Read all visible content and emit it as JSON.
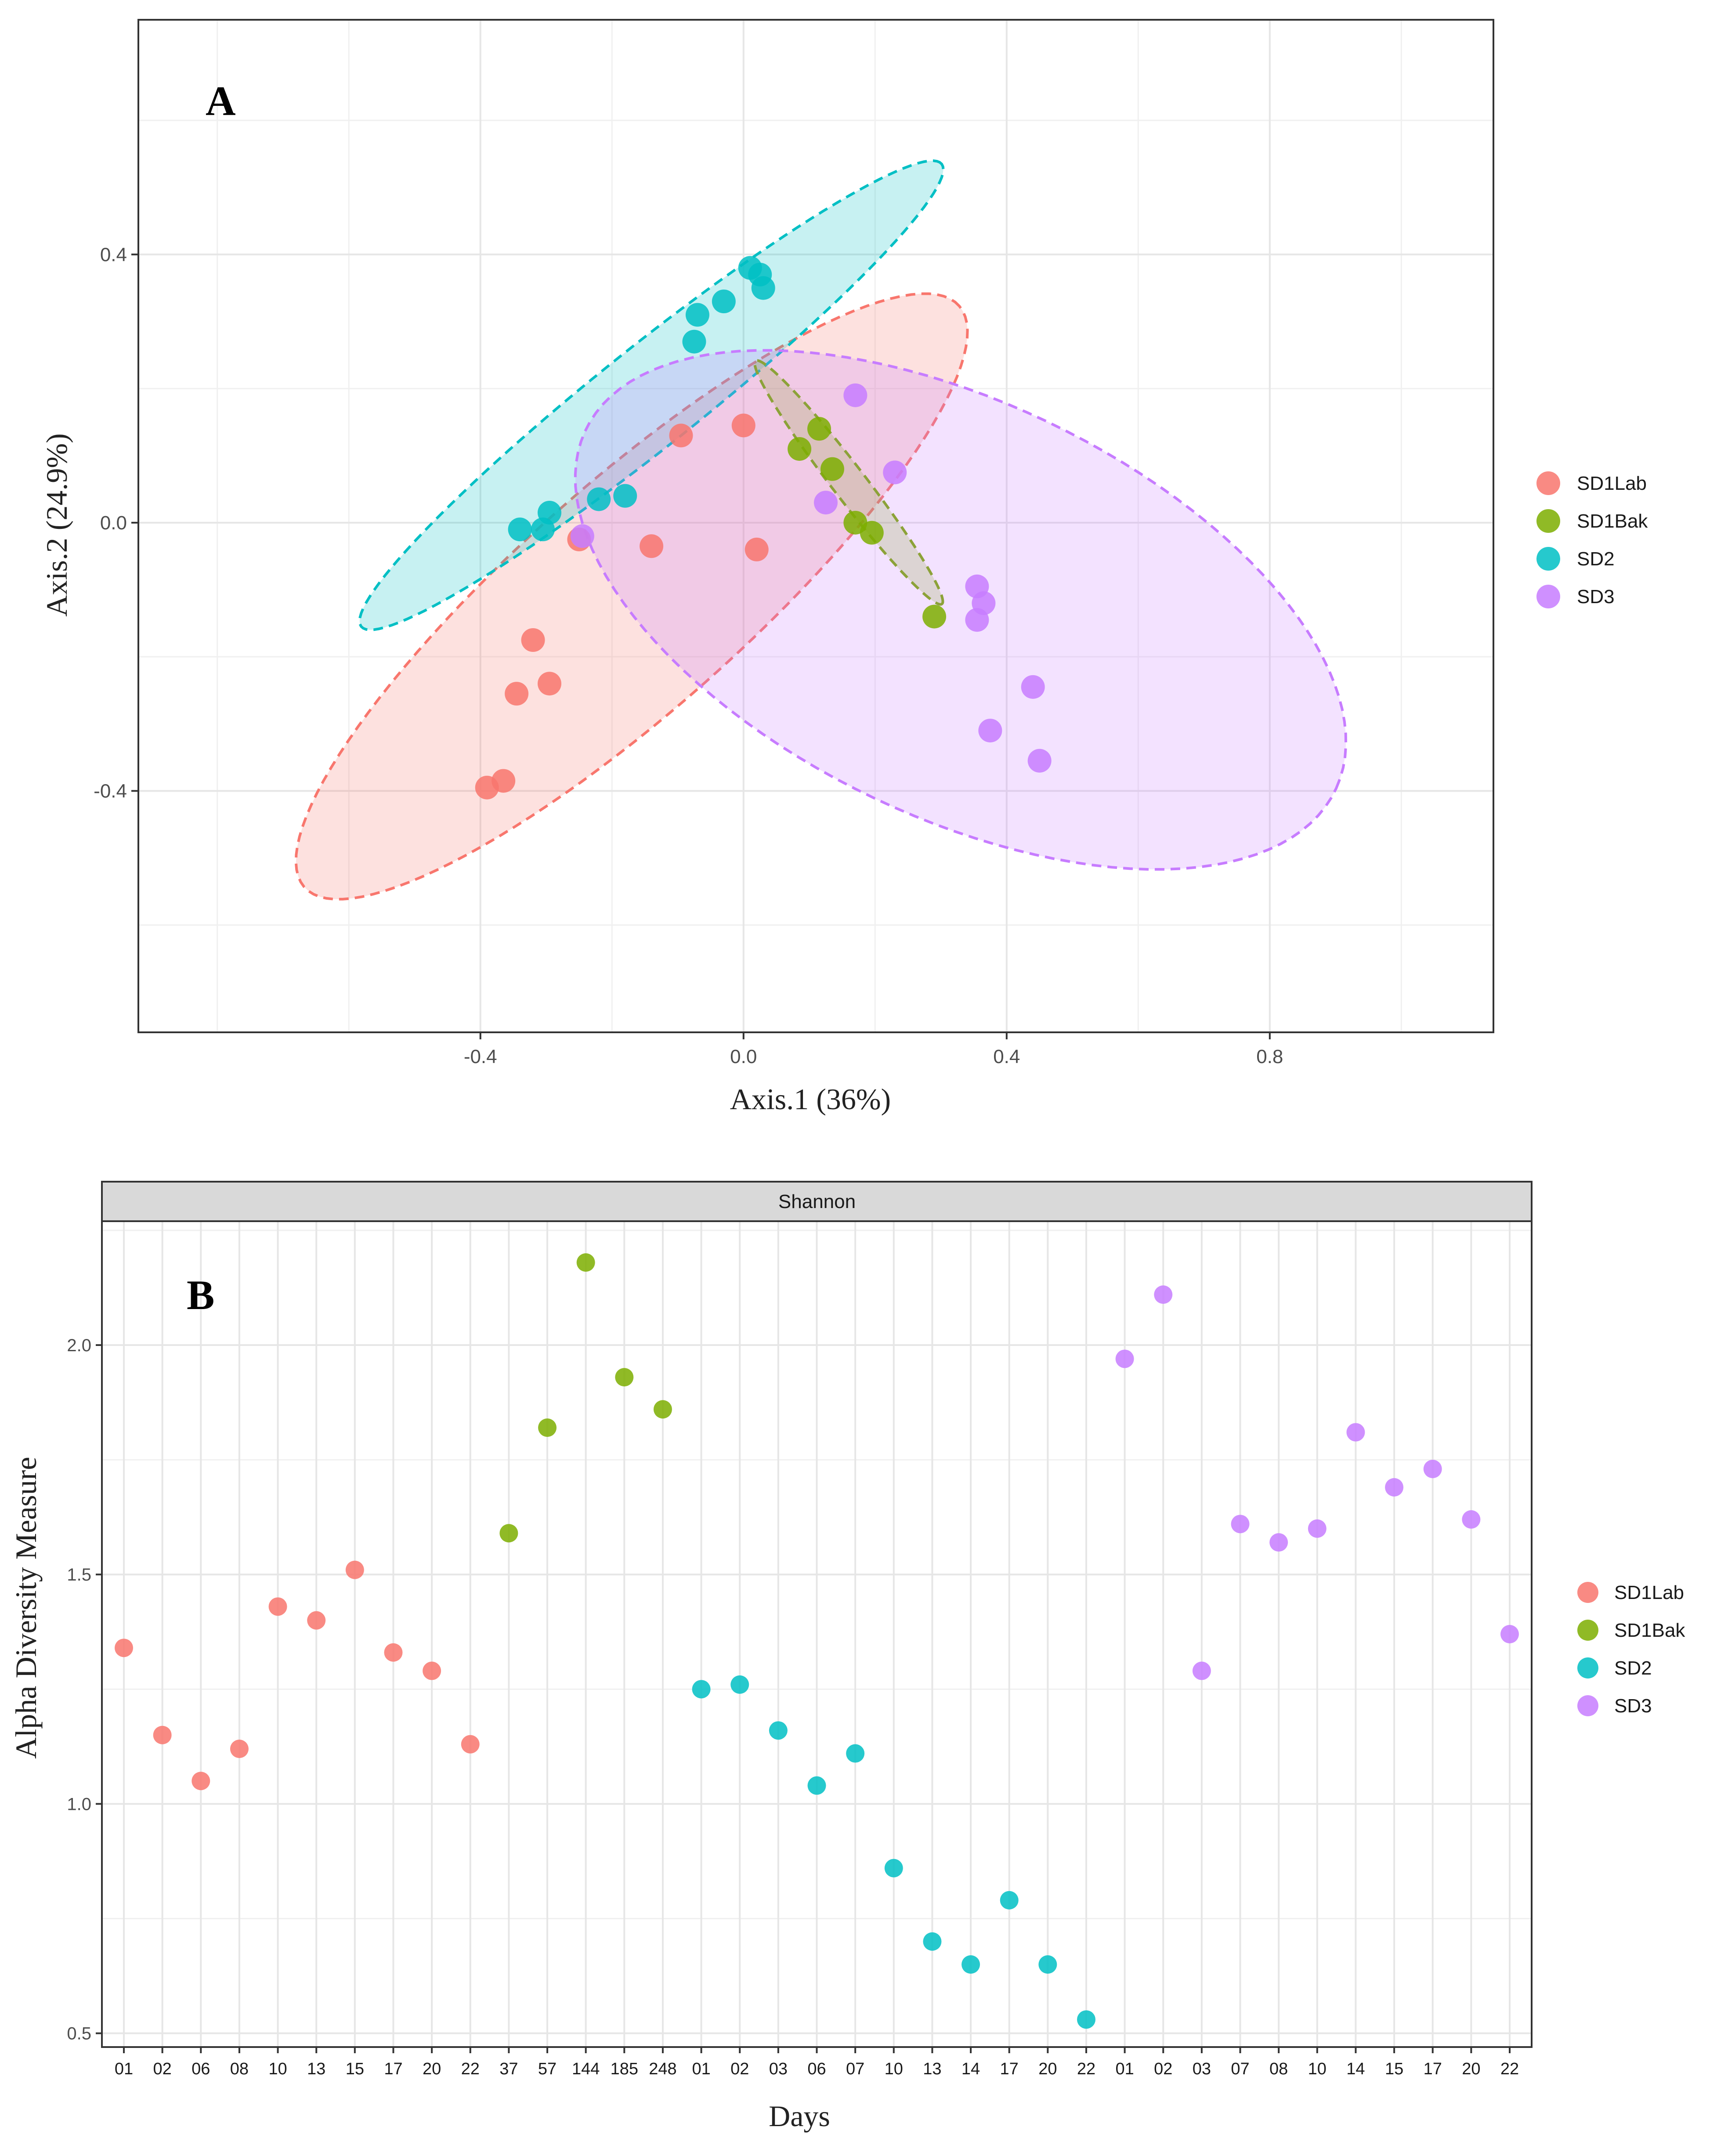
{
  "colors": {
    "SD1Lab": "#F8766D",
    "SD1Bak": "#7CAE00",
    "SD2": "#00BFC4",
    "SD3": "#C77CFF",
    "grid": "#e6e6e6",
    "strip": "#d9d9d9"
  },
  "chart_data": [
    {
      "type": "scatter",
      "panel_label": "A",
      "title": "",
      "xlabel": "Axis.1 (36%)",
      "ylabel": "Axis.2 (24.9%)",
      "xlim": [
        -0.92,
        1.14
      ],
      "ylim": [
        -0.76,
        0.75
      ],
      "xticks": [
        -0.4,
        0.0,
        0.4,
        0.8
      ],
      "xtick_labels": [
        "-0.4",
        "0.0",
        "0.4",
        "0.8"
      ],
      "yticks": [
        -0.4,
        0.0,
        0.4
      ],
      "ytick_labels": [
        "-0.4",
        "0.0",
        "0.4"
      ],
      "grid": true,
      "legend": {
        "position": "right",
        "entries": [
          "SD1Lab",
          "SD1Bak",
          "SD2",
          "SD3"
        ]
      },
      "ellipses": [
        {
          "group": "SD1Lab",
          "center": [
            -0.17,
            -0.11
          ],
          "semi_major": 0.66,
          "semi_minor": 0.17,
          "angle_deg": 41
        },
        {
          "group": "SD2",
          "center": [
            -0.14,
            0.19
          ],
          "semi_major": 0.56,
          "semi_minor": 0.075,
          "angle_deg": 38
        },
        {
          "group": "SD1Bak",
          "center": [
            0.16,
            0.06
          ],
          "semi_major": 0.23,
          "semi_minor": 0.025,
          "angle_deg": -52
        },
        {
          "group": "SD3",
          "center": [
            0.33,
            -0.13
          ],
          "semi_major": 0.63,
          "semi_minor": 0.31,
          "angle_deg": -25
        }
      ],
      "series": [
        {
          "name": "SD1Lab",
          "points": [
            [
              -0.39,
              -0.395
            ],
            [
              -0.365,
              -0.385
            ],
            [
              -0.345,
              -0.255
            ],
            [
              -0.32,
              -0.175
            ],
            [
              -0.295,
              -0.24
            ],
            [
              -0.25,
              -0.025
            ],
            [
              -0.14,
              -0.035
            ],
            [
              -0.095,
              0.13
            ],
            [
              0.0,
              0.145
            ],
            [
              0.02,
              -0.04
            ]
          ]
        },
        {
          "name": "SD1Bak",
          "points": [
            [
              0.085,
              0.11
            ],
            [
              0.115,
              0.14
            ],
            [
              0.135,
              0.08
            ],
            [
              0.17,
              0.0
            ],
            [
              0.195,
              -0.015
            ],
            [
              0.29,
              -0.14
            ]
          ]
        },
        {
          "name": "SD2",
          "points": [
            [
              -0.34,
              -0.01
            ],
            [
              -0.305,
              -0.01
            ],
            [
              -0.295,
              0.015
            ],
            [
              -0.22,
              0.035
            ],
            [
              -0.18,
              0.04
            ],
            [
              -0.075,
              0.27
            ],
            [
              -0.07,
              0.31
            ],
            [
              -0.03,
              0.33
            ],
            [
              0.01,
              0.38
            ],
            [
              0.025,
              0.37
            ],
            [
              0.03,
              0.35
            ]
          ]
        },
        {
          "name": "SD3",
          "points": [
            [
              -0.245,
              -0.02
            ],
            [
              0.125,
              0.03
            ],
            [
              0.17,
              0.19
            ],
            [
              0.23,
              0.075
            ],
            [
              0.355,
              -0.095
            ],
            [
              0.355,
              -0.145
            ],
            [
              0.365,
              -0.12
            ],
            [
              0.375,
              -0.31
            ],
            [
              0.44,
              -0.245
            ],
            [
              0.45,
              -0.355
            ]
          ]
        }
      ]
    },
    {
      "type": "scatter",
      "panel_label": "B",
      "facet_title": "Shannon",
      "xlabel": "Days",
      "ylabel": "Alpha Diversity Measure",
      "ylim": [
        0.47,
        2.27
      ],
      "yticks": [
        0.5,
        1.0,
        1.5,
        2.0
      ],
      "ytick_labels": [
        "0.5",
        "1.0",
        "1.5",
        "2.0"
      ],
      "grid": true,
      "legend": {
        "position": "right",
        "entries": [
          "SD1Lab",
          "SD1Bak",
          "SD2",
          "SD3"
        ]
      },
      "categories": [
        "01",
        "02",
        "06",
        "08",
        "10",
        "13",
        "15",
        "17",
        "20",
        "22",
        "37",
        "57",
        "144",
        "185",
        "248",
        "01",
        "02",
        "03",
        "06",
        "07",
        "10",
        "13",
        "14",
        "17",
        "20",
        "22",
        "01",
        "02",
        "03",
        "07",
        "08",
        "10",
        "14",
        "15",
        "17",
        "20",
        "22"
      ],
      "series": [
        {
          "name": "SD1Lab",
          "x_index": [
            0,
            1,
            2,
            3,
            4,
            5,
            6,
            7,
            8,
            9
          ],
          "values": [
            1.34,
            1.15,
            1.05,
            1.12,
            1.43,
            1.4,
            1.51,
            1.33,
            1.29,
            1.13
          ]
        },
        {
          "name": "SD1Bak",
          "x_index": [
            10,
            11,
            12,
            13,
            14
          ],
          "values": [
            1.59,
            1.82,
            2.18,
            1.93,
            1.86
          ]
        },
        {
          "name": "SD2",
          "x_index": [
            15,
            16,
            17,
            18,
            19,
            20,
            21,
            22,
            23,
            24,
            25
          ],
          "values": [
            1.25,
            1.26,
            1.16,
            1.04,
            1.11,
            0.86,
            0.7,
            0.65,
            0.79,
            0.65,
            0.53
          ]
        },
        {
          "name": "SD3",
          "x_index": [
            26,
            27,
            28,
            29,
            30,
            31,
            32,
            33,
            34,
            35,
            36
          ],
          "values": [
            1.97,
            2.11,
            1.29,
            1.61,
            1.57,
            1.6,
            1.81,
            1.69,
            1.73,
            1.62,
            1.37
          ]
        }
      ]
    }
  ]
}
